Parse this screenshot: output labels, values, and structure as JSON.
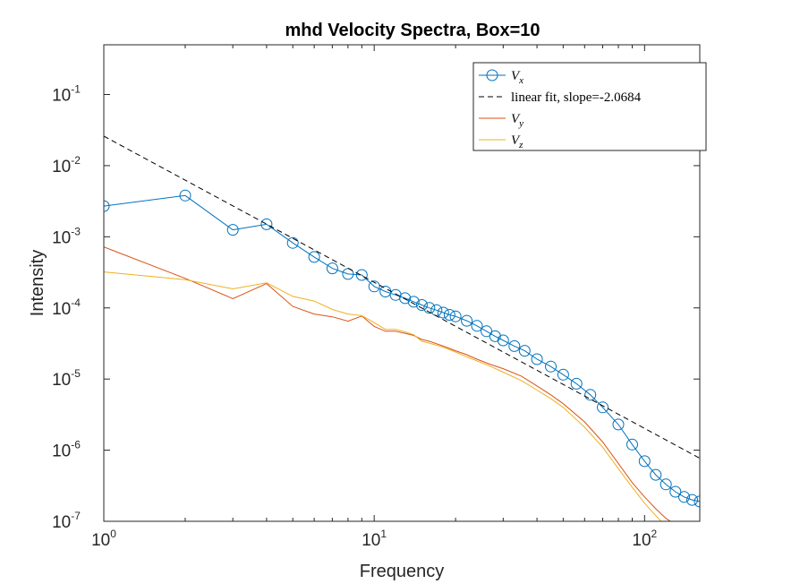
{
  "colors": {
    "vx": "#0072BD",
    "fit": "#000000",
    "vy": "#D95319",
    "vz": "#EDB120",
    "axis": "#262626"
  },
  "chart_data": {
    "type": "line",
    "title": "mhd Velocity Spectra, Box=10",
    "xlabel": "Frequency",
    "ylabel": "Intensity",
    "xscale": "log",
    "yscale": "log",
    "xlim": [
      1,
      160
    ],
    "ylim": [
      1e-07,
      0.5
    ],
    "grid": false,
    "legend_position": "top-right",
    "x_ticks": [
      {
        "value": 1,
        "base": "10",
        "exp": "0"
      },
      {
        "value": 10,
        "base": "10",
        "exp": "1"
      },
      {
        "value": 100,
        "base": "10",
        "exp": "2"
      }
    ],
    "y_ticks": [
      {
        "value": 1e-07,
        "base": "10",
        "exp": "-7"
      },
      {
        "value": 1e-06,
        "base": "10",
        "exp": "-6"
      },
      {
        "value": 1e-05,
        "base": "10",
        "exp": "-5"
      },
      {
        "value": 0.0001,
        "base": "10",
        "exp": "-4"
      },
      {
        "value": 0.001,
        "base": "10",
        "exp": "-3"
      },
      {
        "value": 0.01,
        "base": "10",
        "exp": "-2"
      },
      {
        "value": 0.1,
        "base": "10",
        "exp": "-1"
      }
    ],
    "series": [
      {
        "key": "vx",
        "name": "V",
        "sub": "x",
        "style": "line-circle",
        "x": [
          1,
          2,
          3,
          4,
          5,
          6,
          7,
          8,
          9,
          10,
          11,
          12,
          13,
          14,
          15,
          16,
          17,
          18,
          19,
          20,
          22,
          24,
          26,
          28,
          30,
          33,
          36,
          40,
          45,
          50,
          56,
          63,
          70,
          80,
          90,
          100,
          110,
          120,
          130,
          140,
          150,
          160
        ],
        "y": [
          0.0027,
          0.0038,
          0.00125,
          0.0015,
          0.00082,
          0.00052,
          0.00036,
          0.0003,
          0.00029,
          0.0002,
          0.00017,
          0.000152,
          0.000137,
          0.000122,
          0.00011,
          0.0001,
          9.3e-05,
          8.6e-05,
          8e-05,
          7.6e-05,
          6.6e-05,
          5.6e-05,
          4.7e-05,
          4e-05,
          3.5e-05,
          2.9e-05,
          2.5e-05,
          1.9e-05,
          1.5e-05,
          1.15e-05,
          8.6e-06,
          6e-06,
          4e-06,
          2.3e-06,
          1.2e-06,
          7e-07,
          4.5e-07,
          3.3e-07,
          2.6e-07,
          2.2e-07,
          2e-07,
          1.9e-07
        ]
      },
      {
        "key": "fit",
        "name": "linear fit, slope=-2.0684",
        "style": "dashed",
        "x": [
          1,
          160
        ],
        "y": [
          0.026,
          7.7e-07
        ]
      },
      {
        "key": "vy",
        "name": "V",
        "sub": "y",
        "style": "line",
        "x": [
          1,
          2,
          3,
          4,
          5,
          6,
          7,
          8,
          9,
          10,
          11,
          12,
          13,
          14,
          15,
          16,
          18,
          20,
          22,
          24,
          27,
          30,
          35,
          40,
          45,
          50,
          60,
          70,
          80,
          90,
          100,
          110,
          120,
          130
        ],
        "y": [
          0.00072,
          0.00026,
          0.000135,
          0.00022,
          0.000105,
          8.2e-05,
          7.5e-05,
          6.5e-05,
          7.7e-05,
          5.5e-05,
          4.7e-05,
          4.7e-05,
          4.4e-05,
          4.1e-05,
          3.6e-05,
          3.4e-05,
          2.9e-05,
          2.5e-05,
          2.2e-05,
          1.9e-05,
          1.6e-05,
          1.4e-05,
          1.1e-05,
          8e-06,
          6e-06,
          4.5e-06,
          2.5e-06,
          1.3e-06,
          6.5e-07,
          3.5e-07,
          2.2e-07,
          1.5e-07,
          1.1e-07,
          9e-08
        ]
      },
      {
        "key": "vz",
        "name": "V",
        "sub": "z",
        "style": "line",
        "x": [
          1,
          2,
          3,
          4,
          5,
          6,
          7,
          8,
          9,
          10,
          11,
          12,
          13,
          14,
          15,
          16,
          18,
          20,
          22,
          24,
          27,
          30,
          35,
          40,
          45,
          50,
          60,
          70,
          80,
          90,
          100,
          110,
          120
        ],
        "y": [
          0.00032,
          0.00025,
          0.000185,
          0.000225,
          0.000145,
          0.000125,
          9.5e-05,
          8.2e-05,
          7.8e-05,
          6.2e-05,
          5e-05,
          5e-05,
          4.6e-05,
          4.2e-05,
          3.4e-05,
          3.2e-05,
          2.8e-05,
          2.4e-05,
          2.05e-05,
          1.8e-05,
          1.5e-05,
          1.25e-05,
          9.5e-06,
          7e-06,
          5.3e-06,
          4e-06,
          2.1e-06,
          1.1e-06,
          5.5e-07,
          3e-07,
          1.8e-07,
          1.2e-07,
          8.5e-08
        ]
      }
    ]
  }
}
